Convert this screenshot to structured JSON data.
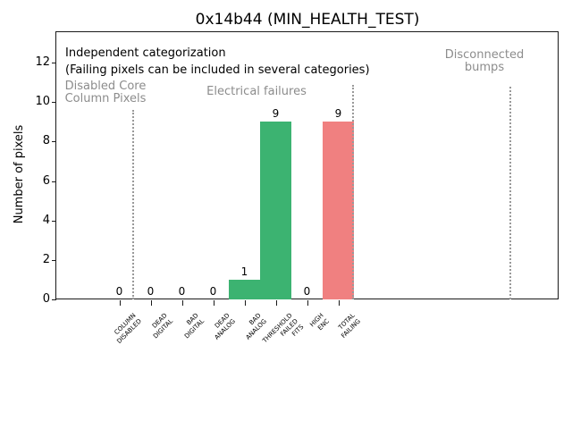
{
  "window": {
    "title": "0x14b44 (MIN_HEALTH_TEST)"
  },
  "chart_data": {
    "type": "bar",
    "title": "0x14b44 (MIN_HEALTH_TEST)",
    "xlabel": "",
    "ylabel": "Number of pixels",
    "ylim": [
      0,
      13.5
    ],
    "yticks": [
      0,
      2,
      4,
      6,
      8,
      10,
      12
    ],
    "grid": false,
    "legend": "none",
    "categories": [
      [
        "COLUMN",
        "DISABLED"
      ],
      [
        "DEAD",
        "DIGITAL"
      ],
      [
        "BAD",
        "DIGITAL"
      ],
      [
        "DEAD",
        "ANALOG"
      ],
      [
        "BAD",
        "ANALOG"
      ],
      [
        "THRESHOLD",
        "FAILED",
        "FITS"
      ],
      [
        "HIGH",
        "ENC"
      ],
      [
        "TOTAL",
        "FAILING"
      ]
    ],
    "values": [
      0,
      0,
      0,
      0,
      1,
      9,
      0,
      9
    ],
    "value_labels": [
      "0",
      "0",
      "0",
      "0",
      "1",
      "9",
      "0",
      "9"
    ],
    "bar_colors": [
      "#3cb371",
      "#3cb371",
      "#3cb371",
      "#3cb371",
      "#3cb371",
      "#3cb371",
      "#3cb371",
      "#f08080"
    ],
    "annotations": {
      "independent_line1": "Independent categorization",
      "independent_line2": "(Failing pixels can be included in several categories)",
      "sections": [
        {
          "lines": [
            "Disabled Core",
            "Column Pixels"
          ]
        },
        {
          "lines": [
            "Electrical failures"
          ]
        },
        {
          "lines": [
            "Disconnected",
            "bumps"
          ]
        }
      ]
    },
    "colors": {
      "bar_green": "#3cb371",
      "bar_red": "#f08080",
      "section_text_gray": "#8c8c8c",
      "divider_gray": "#999999",
      "axis_black": "#1a1a1a"
    }
  }
}
